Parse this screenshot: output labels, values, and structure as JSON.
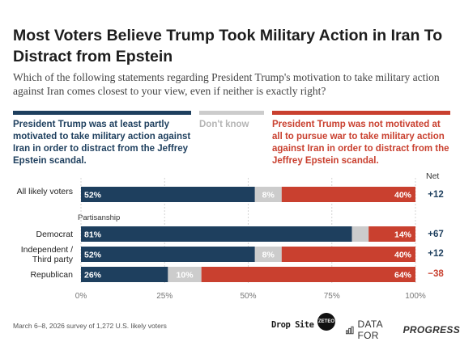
{
  "title": "Most Voters Believe Trump Took Military Action in Iran To Distract from Epstein",
  "question": "Which of the following statements regarding President Trump's motivation to take military action against Iran comes closest to your view, even if neither is exactly right?",
  "legend": [
    {
      "label": "President Trump was at least partly motivated to take military action against Iran in order to distract from the Jeffrey Epstein scandal.",
      "color": "#1e3f5e"
    },
    {
      "label": "Don't know",
      "color": "#cccccc"
    },
    {
      "label": "President Trump was not motivated at all to pursue war to take military action against Iran in order to distract from the Jeffrey Epstein scandal.",
      "color": "#c9402f"
    }
  ],
  "net_header": "Net",
  "section_label": "Partisanship",
  "chart_data": {
    "type": "bar",
    "orientation": "horizontal",
    "stacked": true,
    "categories": [
      "All likely voters",
      "Democrat",
      "Independent / Third party",
      "Republican"
    ],
    "series": [
      {
        "name": "President Trump was at least partly motivated to take military action against Iran in order to distract from the Jeffrey Epstein scandal.",
        "values": [
          52,
          81,
          52,
          26
        ],
        "labels": [
          "52%",
          "81%",
          "52%",
          "26%"
        ],
        "color": "#1e3f5e"
      },
      {
        "name": "Don't know",
        "values": [
          8,
          5,
          8,
          10
        ],
        "labels": [
          "8%",
          "",
          "8%",
          "10%"
        ],
        "color": "#cccccc"
      },
      {
        "name": "President Trump was not motivated at all to pursue war to take military action against Iran in order to distract from the Jeffrey Epstein scandal.",
        "values": [
          40,
          14,
          40,
          64
        ],
        "labels": [
          "40%",
          "14%",
          "40%",
          "64%"
        ],
        "color": "#c9402f"
      }
    ],
    "net": [
      {
        "text": "+12",
        "color": "#1e3f5e"
      },
      {
        "text": "+67",
        "color": "#1e3f5e"
      },
      {
        "text": "+12",
        "color": "#1e3f5e"
      },
      {
        "text": "−38",
        "color": "#c9402f"
      }
    ],
    "xlim": [
      0,
      100
    ],
    "xticks": [
      "0%",
      "25%",
      "50%",
      "75%",
      "100%"
    ],
    "grid": true
  },
  "footer": "March 6–8, 2026 survey of 1,272 U.S. likely voters",
  "logos": {
    "drop_site": "Drop Site",
    "zeteo": "ZETEO",
    "dfp_prefix": "DATA FOR",
    "dfp_bold": "PROGRESS"
  }
}
